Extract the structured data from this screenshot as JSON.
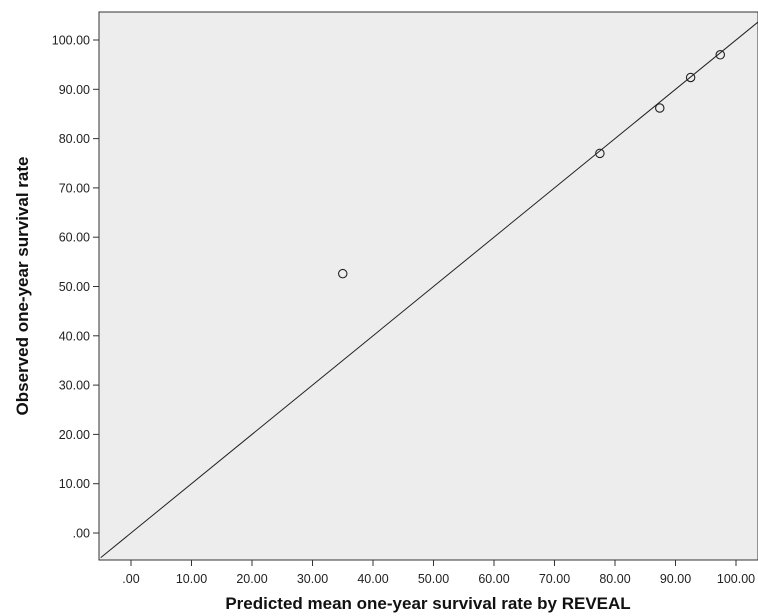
{
  "chart_data": {
    "type": "scatter",
    "title": "",
    "xlabel": "Predicted mean one-year survival rate by REVEAL",
    "ylabel": "Observed one-year survival rate",
    "xlim": [
      -5,
      105
    ],
    "ylim": [
      -5,
      105
    ],
    "x_ticks": [
      ".00",
      "10.00",
      "20.00",
      "30.00",
      "40.00",
      "50.00",
      "60.00",
      "70.00",
      "80.00",
      "90.00",
      "100.00"
    ],
    "y_ticks": [
      ".00",
      "10.00",
      "20.00",
      "30.00",
      "40.00",
      "50.00",
      "60.00",
      "70.00",
      "80.00",
      "90.00",
      "100.00"
    ],
    "points": [
      {
        "x": 35.0,
        "y": 52.6
      },
      {
        "x": 77.5,
        "y": 77.0
      },
      {
        "x": 87.4,
        "y": 86.2
      },
      {
        "x": 92.5,
        "y": 92.4
      },
      {
        "x": 97.4,
        "y": 97.0
      }
    ],
    "reference_line": {
      "type": "identity",
      "from": -5,
      "to": 105
    },
    "grid": false,
    "background": "#ededed",
    "marker": "open-circle"
  }
}
